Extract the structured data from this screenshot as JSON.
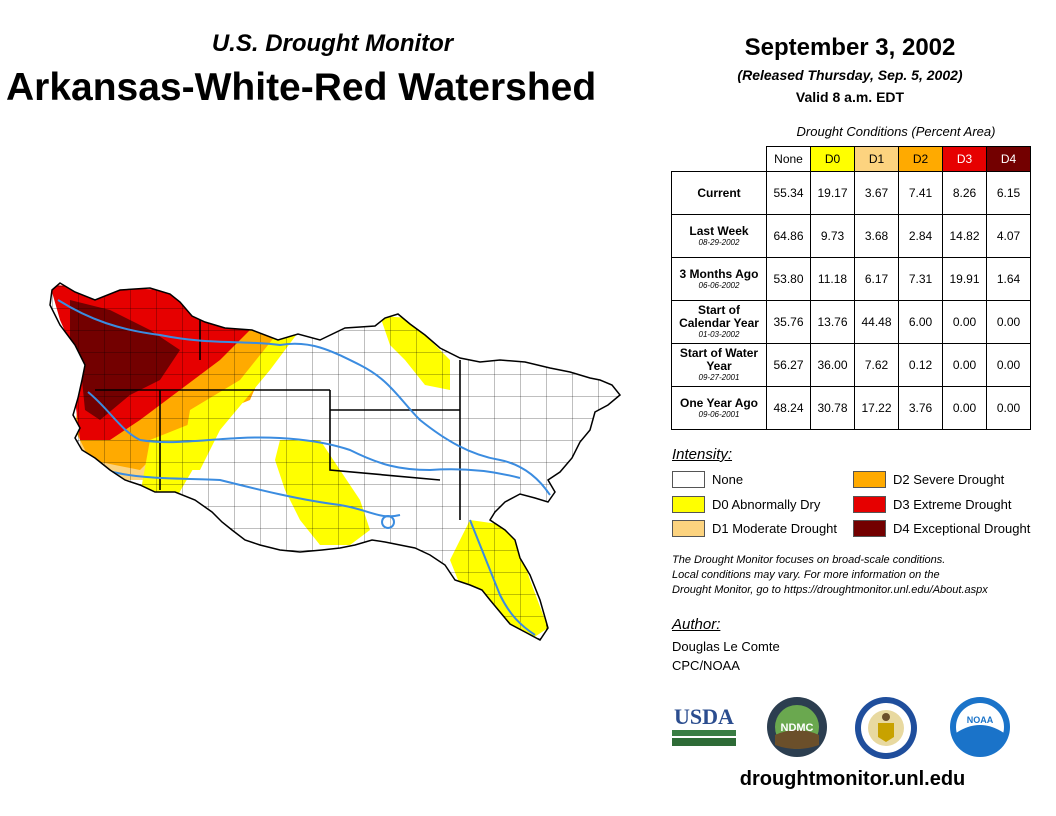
{
  "header": {
    "subtitle": "U.S. Drought Monitor",
    "title": "Arkansas-White-Red Watershed",
    "date": "September 3, 2002",
    "released": "(Released Thursday, Sep. 5, 2002)",
    "valid": "Valid 8 a.m. EDT"
  },
  "table": {
    "caption": "Drought Conditions (Percent Area)",
    "columns": [
      "None",
      "D0",
      "D1",
      "D2",
      "D3",
      "D4"
    ],
    "rows": [
      {
        "label": "Current",
        "date": "",
        "values": [
          "55.34",
          "19.17",
          "3.67",
          "7.41",
          "8.26",
          "6.15"
        ]
      },
      {
        "label": "Last Week",
        "date": "08-29-2002",
        "values": [
          "64.86",
          "9.73",
          "3.68",
          "2.84",
          "14.82",
          "4.07"
        ]
      },
      {
        "label": "3 Months Ago",
        "date": "06-06-2002",
        "values": [
          "53.80",
          "11.18",
          "6.17",
          "7.31",
          "19.91",
          "1.64"
        ]
      },
      {
        "label": "Start of Calendar Year",
        "date": "01-03-2002",
        "values": [
          "35.76",
          "13.76",
          "44.48",
          "6.00",
          "0.00",
          "0.00"
        ]
      },
      {
        "label": "Start of Water Year",
        "date": "09-27-2001",
        "values": [
          "56.27",
          "36.00",
          "7.62",
          "0.12",
          "0.00",
          "0.00"
        ]
      },
      {
        "label": "One Year Ago",
        "date": "09-06-2001",
        "values": [
          "48.24",
          "30.78",
          "17.22",
          "3.76",
          "0.00",
          "0.00"
        ]
      }
    ]
  },
  "legend": {
    "heading": "Intensity:",
    "items": [
      {
        "label": "None",
        "color": "#ffffff"
      },
      {
        "label": "D0 Abnormally Dry",
        "color": "#ffff00"
      },
      {
        "label": "D1 Moderate Drought",
        "color": "#fcd37f"
      },
      {
        "label": "D2 Severe Drought",
        "color": "#ffaa00"
      },
      {
        "label": "D3 Extreme Drought",
        "color": "#e60000"
      },
      {
        "label": "D4 Exceptional Drought",
        "color": "#730000"
      }
    ]
  },
  "note": {
    "line1": "The Drought Monitor focuses on broad-scale conditions.",
    "line2": "Local conditions may vary. For more information on the",
    "line3": "Drought Monitor, go to https://droughtmonitor.unl.edu/About.aspx"
  },
  "author": {
    "heading": "Author:",
    "name": "Douglas Le Comte",
    "org": "CPC/NOAA"
  },
  "logos": {
    "usda": "USDA",
    "ndmc": "NDMC",
    "noaa": "NOAA"
  },
  "website": "droughtmonitor.unl.edu",
  "map": {
    "region": "Arkansas-White-Red Watershed",
    "colors": {
      "none": "#ffffff",
      "d0": "#ffff00",
      "d1": "#fcd37f",
      "d2": "#ffaa00",
      "d3": "#e60000",
      "d4": "#730000",
      "river": "#3b8ce0"
    }
  }
}
